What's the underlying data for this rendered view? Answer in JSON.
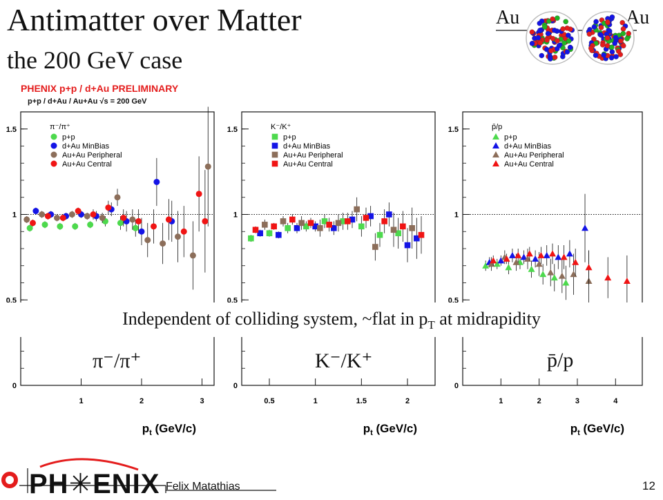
{
  "slide": {
    "title": "Antimatter over Matter",
    "subtitle": "the 200 GeV case",
    "collision_label_left": "Au",
    "collision_label_right": "Au",
    "conclusion_main": "Independent of colliding system, ~flat in p",
    "conclusion_sub": "T",
    "conclusion_end": " at midrapidity",
    "ratio_labels": [
      "π⁻/π⁺",
      "K⁻/K⁺",
      "p̄/p"
    ],
    "author": "Felix Matathias",
    "slide_number": "12",
    "logo_text": "PH✳ENIX"
  },
  "figure": {
    "header": "PHENIX p+p / d+Au PRELIMINARY",
    "energy_label": "p+p / d+Au / Au+Au  √s = 200 GeV",
    "xlabel": "p",
    "xlabel_sub": "t",
    "xlabel_unit": " (GeV/c)"
  },
  "colors": {
    "pp": "#4dd94d",
    "dAu": "#1414e6",
    "AuAuPeripheral": "#8c6e5a",
    "AuAuCentral": "#f01414",
    "header": "#e41c1c"
  },
  "chart_data": [
    {
      "type": "scatter",
      "panel_label": "π⁻/π⁺",
      "marker": "circle",
      "xlim": [
        0,
        3.2
      ],
      "ylim": [
        0,
        1.6
      ],
      "xticks": [
        1,
        2,
        3
      ],
      "yticks": [
        0,
        0.5,
        1,
        1.5
      ],
      "reference_line": 1.0,
      "legend": [
        "p+p",
        "d+Au  MinBias",
        "Au+Au Peripheral",
        "Au+Au Central"
      ],
      "series": [
        {
          "name": "p+p",
          "color_key": "pp",
          "points": [
            [
              0.15,
              0.92,
              0.02
            ],
            [
              0.4,
              0.94,
              0.02
            ],
            [
              0.65,
              0.93,
              0.02
            ],
            [
              0.9,
              0.93,
              0.02
            ],
            [
              1.15,
              0.94,
              0.02
            ],
            [
              1.4,
              0.96,
              0.03
            ],
            [
              1.65,
              0.95,
              0.04
            ],
            [
              1.9,
              0.92,
              0.05
            ]
          ]
        },
        {
          "name": "d+Au  MinBias",
          "color_key": "dAu",
          "points": [
            [
              0.25,
              1.02,
              0.02
            ],
            [
              0.5,
              1.0,
              0.02
            ],
            [
              0.75,
              0.99,
              0.02
            ],
            [
              1.0,
              1.0,
              0.02
            ],
            [
              1.25,
              0.99,
              0.03
            ],
            [
              1.5,
              1.03,
              0.04
            ],
            [
              1.75,
              0.96,
              0.06
            ],
            [
              2.0,
              0.9,
              0.08
            ],
            [
              2.25,
              1.19,
              0.14
            ],
            [
              2.5,
              0.96,
              0.12
            ]
          ]
        },
        {
          "name": "Au+Au Peripheral",
          "color_key": "AuAuPeripheral",
          "points": [
            [
              0.1,
              0.97,
              0.02
            ],
            [
              0.35,
              1.0,
              0.02
            ],
            [
              0.6,
              0.98,
              0.02
            ],
            [
              0.85,
              1.0,
              0.02
            ],
            [
              1.1,
              0.99,
              0.02
            ],
            [
              1.35,
              0.98,
              0.03
            ],
            [
              1.6,
              1.1,
              0.05
            ],
            [
              1.85,
              0.97,
              0.06
            ],
            [
              2.1,
              0.85,
              0.1
            ],
            [
              2.35,
              0.83,
              0.12
            ],
            [
              2.6,
              0.87,
              0.15
            ],
            [
              2.85,
              0.76,
              0.2
            ],
            [
              3.1,
              1.28,
              0.35
            ]
          ]
        },
        {
          "name": "Au+Au Central",
          "color_key": "AuAuCentral",
          "points": [
            [
              0.2,
              0.95,
              0.02
            ],
            [
              0.45,
              0.99,
              0.02
            ],
            [
              0.7,
              0.98,
              0.02
            ],
            [
              0.95,
              1.02,
              0.02
            ],
            [
              1.2,
              1.0,
              0.03
            ],
            [
              1.45,
              1.04,
              0.04
            ],
            [
              1.7,
              0.98,
              0.05
            ],
            [
              1.95,
              0.96,
              0.07
            ],
            [
              2.2,
              0.93,
              0.1
            ],
            [
              2.45,
              0.97,
              0.12
            ],
            [
              2.7,
              0.9,
              0.15
            ],
            [
              2.95,
              1.12,
              0.22
            ],
            [
              3.05,
              0.96,
              0.3
            ]
          ]
        }
      ]
    },
    {
      "type": "scatter",
      "panel_label": "K⁻/K⁺",
      "marker": "square",
      "xlim": [
        0.2,
        2.3
      ],
      "ylim": [
        0,
        1.6
      ],
      "xticks": [
        0.5,
        1,
        1.5,
        2
      ],
      "yticks": [
        0,
        0.5,
        1,
        1.5
      ],
      "reference_line": 1.0,
      "legend": [
        "p+p",
        "d+Au  MinBias",
        "Au+Au Peripheral",
        "Au+Au Central"
      ],
      "series": [
        {
          "name": "p+p",
          "color_key": "pp",
          "points": [
            [
              0.3,
              0.86,
              0.02
            ],
            [
              0.5,
              0.89,
              0.02
            ],
            [
              0.7,
              0.92,
              0.03
            ],
            [
              0.9,
              0.93,
              0.03
            ],
            [
              1.1,
              0.96,
              0.04
            ],
            [
              1.3,
              0.96,
              0.05
            ],
            [
              1.5,
              0.93,
              0.06
            ],
            [
              1.7,
              0.88,
              0.07
            ],
            [
              1.9,
              0.89,
              0.09
            ]
          ]
        },
        {
          "name": "d+Au  MinBias",
          "color_key": "dAu",
          "points": [
            [
              0.4,
              0.89,
              0.02
            ],
            [
              0.6,
              0.88,
              0.02
            ],
            [
              0.8,
              0.92,
              0.03
            ],
            [
              1.0,
              0.93,
              0.03
            ],
            [
              1.2,
              0.92,
              0.04
            ],
            [
              1.4,
              0.97,
              0.05
            ],
            [
              1.6,
              0.99,
              0.06
            ],
            [
              1.8,
              1.0,
              0.07
            ],
            [
              2.0,
              0.82,
              0.1
            ],
            [
              2.1,
              0.86,
              0.12
            ]
          ]
        },
        {
          "name": "Au+Au Peripheral",
          "color_key": "AuAuPeripheral",
          "points": [
            [
              0.45,
              0.94,
              0.03
            ],
            [
              0.65,
              0.96,
              0.03
            ],
            [
              0.85,
              0.95,
              0.04
            ],
            [
              1.05,
              0.92,
              0.05
            ],
            [
              1.25,
              0.95,
              0.05
            ],
            [
              1.45,
              1.03,
              0.07
            ],
            [
              1.65,
              0.81,
              0.08
            ],
            [
              1.85,
              0.91,
              0.1
            ],
            [
              2.05,
              0.92,
              0.12
            ]
          ]
        },
        {
          "name": "Au+Au Central",
          "color_key": "AuAuCentral",
          "points": [
            [
              0.35,
              0.91,
              0.02
            ],
            [
              0.55,
              0.93,
              0.02
            ],
            [
              0.75,
              0.97,
              0.03
            ],
            [
              0.95,
              0.95,
              0.03
            ],
            [
              1.15,
              0.94,
              0.04
            ],
            [
              1.35,
              0.96,
              0.05
            ],
            [
              1.55,
              0.98,
              0.06
            ],
            [
              1.75,
              0.96,
              0.07
            ],
            [
              1.95,
              0.93,
              0.09
            ],
            [
              2.15,
              0.88,
              0.11
            ]
          ]
        }
      ]
    },
    {
      "type": "scatter",
      "panel_label": "p̄/p",
      "marker": "triangle",
      "xlim": [
        0,
        4.7
      ],
      "ylim": [
        0,
        1.6
      ],
      "xticks": [
        1,
        2,
        3,
        4
      ],
      "yticks": [
        0,
        0.5,
        1,
        1.5
      ],
      "reference_line": 1.0,
      "legend": [
        "p+p",
        "d+Au  MinBias",
        "Au+Au Peripheral",
        "Au+Au Central"
      ],
      "series": [
        {
          "name": "p+p",
          "color_key": "pp",
          "points": [
            [
              0.6,
              0.7,
              0.03
            ],
            [
              0.9,
              0.71,
              0.03
            ],
            [
              1.2,
              0.69,
              0.04
            ],
            [
              1.5,
              0.72,
              0.04
            ],
            [
              1.8,
              0.68,
              0.05
            ],
            [
              2.1,
              0.65,
              0.06
            ],
            [
              2.4,
              0.63,
              0.08
            ],
            [
              2.7,
              0.6,
              0.1
            ]
          ]
        },
        {
          "name": "d+Au  MinBias",
          "color_key": "dAu",
          "points": [
            [
              0.7,
              0.72,
              0.03
            ],
            [
              1.0,
              0.73,
              0.03
            ],
            [
              1.3,
              0.76,
              0.04
            ],
            [
              1.6,
              0.75,
              0.04
            ],
            [
              1.9,
              0.74,
              0.05
            ],
            [
              2.2,
              0.76,
              0.06
            ],
            [
              2.5,
              0.75,
              0.07
            ],
            [
              2.8,
              0.77,
              0.08
            ],
            [
              3.2,
              0.92,
              0.2
            ]
          ]
        },
        {
          "name": "Au+Au Peripheral",
          "color_key": "AuAuPeripheral",
          "points": [
            [
              0.75,
              0.71,
              0.04
            ],
            [
              1.1,
              0.75,
              0.04
            ],
            [
              1.4,
              0.72,
              0.05
            ],
            [
              1.7,
              0.74,
              0.06
            ],
            [
              2.0,
              0.71,
              0.07
            ],
            [
              2.3,
              0.66,
              0.08
            ],
            [
              2.6,
              0.64,
              0.1
            ],
            [
              2.9,
              0.65,
              0.12
            ],
            [
              3.3,
              0.61,
              0.18
            ]
          ]
        },
        {
          "name": "Au+Au Central",
          "color_key": "AuAuCentral",
          "points": [
            [
              0.8,
              0.73,
              0.03
            ],
            [
              1.15,
              0.74,
              0.03
            ],
            [
              1.45,
              0.76,
              0.04
            ],
            [
              1.75,
              0.77,
              0.04
            ],
            [
              2.05,
              0.76,
              0.05
            ],
            [
              2.35,
              0.77,
              0.06
            ],
            [
              2.65,
              0.75,
              0.07
            ],
            [
              2.95,
              0.72,
              0.08
            ],
            [
              3.3,
              0.69,
              0.1
            ],
            [
              3.8,
              0.63,
              0.12
            ],
            [
              4.3,
              0.61,
              0.15
            ]
          ]
        }
      ]
    }
  ]
}
